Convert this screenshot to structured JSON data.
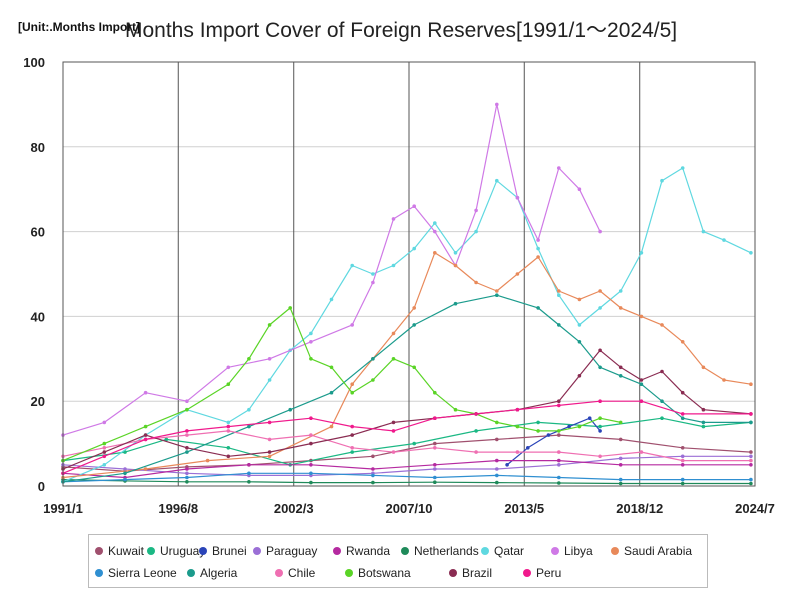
{
  "header": {
    "title": "Months Import Cover of Foreign Reserves[1991/1～2024/5]",
    "unit": "[Unit:.Months Import]"
  },
  "chart_data": {
    "type": "line",
    "title": "Months Import Cover of Foreign Reserves[1991/1～2024/5]",
    "ylabel": "[Unit:.Months Import]",
    "xlabel": "",
    "xlim": [
      1991.0,
      2024.5
    ],
    "ylim": [
      0,
      100
    ],
    "x_ticks": [
      {
        "label": "1991/1",
        "x": 1991.0
      },
      {
        "label": "1996/8",
        "x": 1996.58
      },
      {
        "label": "2002/3",
        "x": 2002.17
      },
      {
        "label": "2007/10",
        "x": 2007.75
      },
      {
        "label": "2013/5",
        "x": 2013.33
      },
      {
        "label": "2018/12",
        "x": 2018.92
      },
      {
        "label": "2024/7",
        "x": 2024.5
      }
    ],
    "y_ticks": [
      0,
      20,
      40,
      60,
      80,
      100
    ],
    "grid": true,
    "legend_position": "bottom",
    "series": [
      {
        "name": "Kuwait",
        "color": "#a0506e",
        "points": [
          [
            1991.0,
            4.5
          ],
          [
            1994,
            3.5
          ],
          [
            1997,
            4.5
          ],
          [
            2000,
            5
          ],
          [
            2003,
            6
          ],
          [
            2006,
            7
          ],
          [
            2009,
            10
          ],
          [
            2012,
            11
          ],
          [
            2015,
            12
          ],
          [
            2018,
            11
          ],
          [
            2021,
            9
          ],
          [
            2024.3,
            8
          ]
        ]
      },
      {
        "name": "Uruguay",
        "color": "#1bb884",
        "points": [
          [
            1991.0,
            6
          ],
          [
            1994,
            8
          ],
          [
            1996,
            11
          ],
          [
            1999,
            9
          ],
          [
            2002,
            5
          ],
          [
            2005,
            8
          ],
          [
            2008,
            10
          ],
          [
            2011,
            13
          ],
          [
            2014,
            15
          ],
          [
            2017,
            14
          ],
          [
            2020,
            16
          ],
          [
            2022,
            14
          ],
          [
            2024.3,
            15
          ]
        ]
      },
      {
        "name": "Brunei",
        "color": "#2a44b8",
        "points": [
          [
            2012.5,
            5
          ],
          [
            2013.5,
            9
          ],
          [
            2014.5,
            12
          ],
          [
            2015.5,
            14
          ],
          [
            2016.5,
            16
          ],
          [
            2017,
            13
          ]
        ]
      },
      {
        "name": "Paraguay",
        "color": "#9b6fd6",
        "points": [
          [
            1991.0,
            5
          ],
          [
            1994,
            4
          ],
          [
            1997,
            3
          ],
          [
            2000,
            2.5
          ],
          [
            2003,
            2.5
          ],
          [
            2006,
            3
          ],
          [
            2009,
            4
          ],
          [
            2012,
            4
          ],
          [
            2015,
            5
          ],
          [
            2018,
            6.5
          ],
          [
            2021,
            7
          ],
          [
            2024.3,
            7
          ]
        ]
      },
      {
        "name": "Rwanda",
        "color": "#b52aa0",
        "points": [
          [
            1991.0,
            3
          ],
          [
            1994,
            2
          ],
          [
            1997,
            4
          ],
          [
            2000,
            5
          ],
          [
            2003,
            5
          ],
          [
            2006,
            4
          ],
          [
            2009,
            5
          ],
          [
            2012,
            6
          ],
          [
            2015,
            6
          ],
          [
            2018,
            5
          ],
          [
            2021,
            5
          ],
          [
            2024.3,
            5
          ]
        ]
      },
      {
        "name": "Netherlands",
        "color": "#1f8a5a",
        "points": [
          [
            1991.0,
            1.5
          ],
          [
            1994,
            1.2
          ],
          [
            1997,
            1
          ],
          [
            2000,
            1
          ],
          [
            2003,
            0.8
          ],
          [
            2006,
            0.8
          ],
          [
            2009,
            0.9
          ],
          [
            2012,
            0.8
          ],
          [
            2015,
            0.7
          ],
          [
            2018,
            0.6
          ],
          [
            2021,
            0.6
          ],
          [
            2024.3,
            0.6
          ]
        ]
      },
      {
        "name": "Qatar",
        "color": "#5fd8e0",
        "points": [
          [
            1991.0,
            1
          ],
          [
            1993,
            5
          ],
          [
            1995,
            12
          ],
          [
            1997,
            18
          ],
          [
            1999,
            15
          ],
          [
            2000,
            18
          ],
          [
            2001,
            25
          ],
          [
            2002,
            32
          ],
          [
            2003,
            36
          ],
          [
            2004,
            44
          ],
          [
            2005,
            52
          ],
          [
            2006,
            50
          ],
          [
            2007,
            52
          ],
          [
            2008,
            56
          ],
          [
            2009,
            62
          ],
          [
            2010,
            55
          ],
          [
            2011,
            60
          ],
          [
            2012,
            72
          ],
          [
            2013,
            68
          ],
          [
            2014,
            56
          ],
          [
            2015,
            45
          ],
          [
            2016,
            38
          ],
          [
            2017,
            42
          ],
          [
            2018,
            46
          ],
          [
            2019,
            55
          ],
          [
            2020,
            72
          ],
          [
            2021,
            75
          ],
          [
            2022,
            60
          ],
          [
            2023,
            58
          ],
          [
            2024.3,
            55
          ]
        ]
      },
      {
        "name": "Libya",
        "color": "#cf79e6",
        "points": [
          [
            1991.0,
            12
          ],
          [
            1993,
            15
          ],
          [
            1995,
            22
          ],
          [
            1997,
            20
          ],
          [
            1999,
            28
          ],
          [
            2001,
            30
          ],
          [
            2003,
            34
          ],
          [
            2005,
            38
          ],
          [
            2006,
            48
          ],
          [
            2007,
            63
          ],
          [
            2008,
            66
          ],
          [
            2009,
            60
          ],
          [
            2010,
            52
          ],
          [
            2011,
            65
          ],
          [
            2012,
            90
          ],
          [
            2013,
            68
          ],
          [
            2014,
            58
          ],
          [
            2015,
            75
          ],
          [
            2016,
            70
          ],
          [
            2017,
            60
          ]
        ]
      },
      {
        "name": "Saudi Arabia",
        "color": "#e8895a",
        "points": [
          [
            1991.0,
            2
          ],
          [
            1995,
            4
          ],
          [
            1998,
            6
          ],
          [
            2001,
            7
          ],
          [
            2004,
            14
          ],
          [
            2005,
            24
          ],
          [
            2006,
            30
          ],
          [
            2007,
            36
          ],
          [
            2008,
            42
          ],
          [
            2009,
            55
          ],
          [
            2010,
            52
          ],
          [
            2011,
            48
          ],
          [
            2012,
            46
          ],
          [
            2013,
            50
          ],
          [
            2014,
            54
          ],
          [
            2015,
            46
          ],
          [
            2016,
            44
          ],
          [
            2017,
            46
          ],
          [
            2018,
            42
          ],
          [
            2019,
            40
          ],
          [
            2020,
            38
          ],
          [
            2021,
            34
          ],
          [
            2022,
            28
          ],
          [
            2023,
            25
          ],
          [
            2024.3,
            24
          ]
        ]
      },
      {
        "name": "Sierra Leone",
        "color": "#2f8fd1",
        "points": [
          [
            1991.0,
            1
          ],
          [
            1994,
            1.5
          ],
          [
            1997,
            2
          ],
          [
            2000,
            3
          ],
          [
            2003,
            3
          ],
          [
            2006,
            2.5
          ],
          [
            2009,
            2
          ],
          [
            2012,
            2.5
          ],
          [
            2015,
            2
          ],
          [
            2018,
            1.5
          ],
          [
            2021,
            1.5
          ],
          [
            2024.3,
            1.5
          ]
        ]
      },
      {
        "name": "Algeria",
        "color": "#1b9b8c",
        "points": [
          [
            1991.0,
            1
          ],
          [
            1994,
            3
          ],
          [
            1997,
            8
          ],
          [
            2000,
            14
          ],
          [
            2002,
            18
          ],
          [
            2004,
            22
          ],
          [
            2006,
            30
          ],
          [
            2008,
            38
          ],
          [
            2010,
            43
          ],
          [
            2012,
            45
          ],
          [
            2014,
            42
          ],
          [
            2015,
            38
          ],
          [
            2016,
            34
          ],
          [
            2017,
            28
          ],
          [
            2018,
            26
          ],
          [
            2019,
            24
          ],
          [
            2020,
            20
          ],
          [
            2021,
            16
          ],
          [
            2022,
            15
          ],
          [
            2024.3,
            15
          ]
        ]
      },
      {
        "name": "Chile",
        "color": "#ef6fb2",
        "points": [
          [
            1991.0,
            7
          ],
          [
            1993,
            9
          ],
          [
            1995,
            11
          ],
          [
            1997,
            12
          ],
          [
            1999,
            13
          ],
          [
            2001,
            11
          ],
          [
            2003,
            12
          ],
          [
            2005,
            9
          ],
          [
            2007,
            8
          ],
          [
            2009,
            9
          ],
          [
            2011,
            8
          ],
          [
            2013,
            8
          ],
          [
            2015,
            8
          ],
          [
            2017,
            7
          ],
          [
            2019,
            8
          ],
          [
            2021,
            6
          ],
          [
            2024.3,
            6
          ]
        ]
      },
      {
        "name": "Botswana",
        "color": "#5ad426",
        "points": [
          [
            1991.0,
            6
          ],
          [
            1993,
            10
          ],
          [
            1995,
            14
          ],
          [
            1997,
            18
          ],
          [
            1999,
            24
          ],
          [
            2000,
            30
          ],
          [
            2001,
            38
          ],
          [
            2002,
            42
          ],
          [
            2003,
            30
          ],
          [
            2004,
            28
          ],
          [
            2005,
            22
          ],
          [
            2006,
            25
          ],
          [
            2007,
            30
          ],
          [
            2008,
            28
          ],
          [
            2009,
            22
          ],
          [
            2010,
            18
          ],
          [
            2011,
            17
          ],
          [
            2012,
            15
          ],
          [
            2013,
            14
          ],
          [
            2014,
            13
          ],
          [
            2015,
            13
          ],
          [
            2016,
            14
          ],
          [
            2017,
            16
          ],
          [
            2018,
            15
          ]
        ]
      },
      {
        "name": "Brazil",
        "color": "#8a2c52",
        "points": [
          [
            1991.0,
            4
          ],
          [
            1993,
            8
          ],
          [
            1995,
            12
          ],
          [
            1997,
            9
          ],
          [
            1999,
            7
          ],
          [
            2001,
            8
          ],
          [
            2003,
            10
          ],
          [
            2005,
            12
          ],
          [
            2007,
            15
          ],
          [
            2009,
            16
          ],
          [
            2011,
            17
          ],
          [
            2013,
            18
          ],
          [
            2015,
            20
          ],
          [
            2016,
            26
          ],
          [
            2017,
            32
          ],
          [
            2018,
            28
          ],
          [
            2019,
            25
          ],
          [
            2020,
            27
          ],
          [
            2021,
            22
          ],
          [
            2022,
            18
          ],
          [
            2024.3,
            17
          ]
        ]
      },
      {
        "name": "Peru",
        "color": "#f0198c",
        "points": [
          [
            1991.0,
            3
          ],
          [
            1993,
            7
          ],
          [
            1995,
            11
          ],
          [
            1997,
            13
          ],
          [
            1999,
            14
          ],
          [
            2001,
            15
          ],
          [
            2003,
            16
          ],
          [
            2005,
            14
          ],
          [
            2007,
            13
          ],
          [
            2009,
            16
          ],
          [
            2011,
            17
          ],
          [
            2013,
            18
          ],
          [
            2015,
            19
          ],
          [
            2017,
            20
          ],
          [
            2019,
            20
          ],
          [
            2021,
            17
          ],
          [
            2024.3,
            17
          ]
        ]
      }
    ]
  },
  "legend": {
    "items": [
      "Kuwait",
      "Uruguay",
      "Brunei",
      "Paraguay",
      "Rwanda",
      "Netherlands",
      "Qatar",
      "Libya",
      "Saudi Arabia",
      "Sierra Leone",
      "Algeria",
      "Chile",
      "Botswana",
      "Brazil",
      "Peru"
    ]
  }
}
